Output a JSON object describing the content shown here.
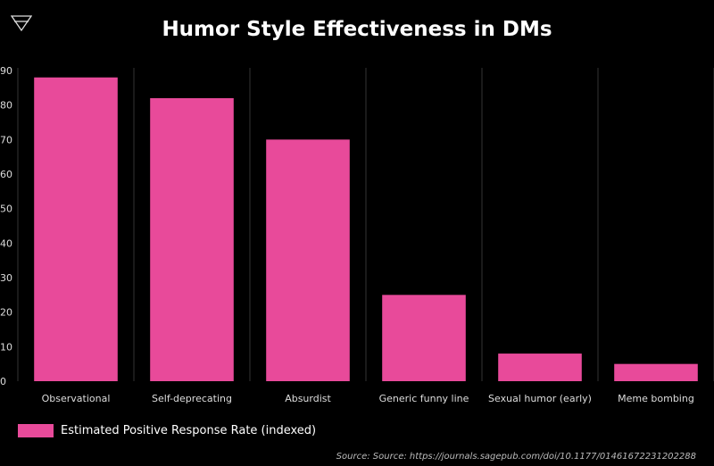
{
  "colors": {
    "background": "#000000",
    "bar": "#e84a9a",
    "grid": "#333333",
    "text": "#ffffff",
    "source_text": "#bbbbbb"
  },
  "logo": {
    "icon": "triangle-logo-icon"
  },
  "chart_data": {
    "type": "bar",
    "title": "Humor Style Effectiveness in DMs",
    "xlabel": "",
    "ylabel": "",
    "categories": [
      "Observational",
      "Self-deprecating",
      "Absurdist",
      "Generic funny line",
      "Sexual humor (early)",
      "Meme bombing"
    ],
    "series": [
      {
        "name": "Estimated Positive Response Rate (indexed)",
        "values": [
          88,
          82,
          70,
          25,
          8,
          5
        ]
      }
    ],
    "ylim": [
      0,
      90
    ],
    "yticks": [
      "0",
      "10",
      "20",
      "30",
      "40",
      "50",
      "60",
      "70",
      "80",
      "90"
    ],
    "grid": "vertical",
    "legend_position": "bottom-left"
  },
  "legend": {
    "label": "Estimated Positive Response Rate (indexed)"
  },
  "source": {
    "text": "Source: Source: https://journals.sagepub.com/doi/10.1177/01461672231202288"
  }
}
